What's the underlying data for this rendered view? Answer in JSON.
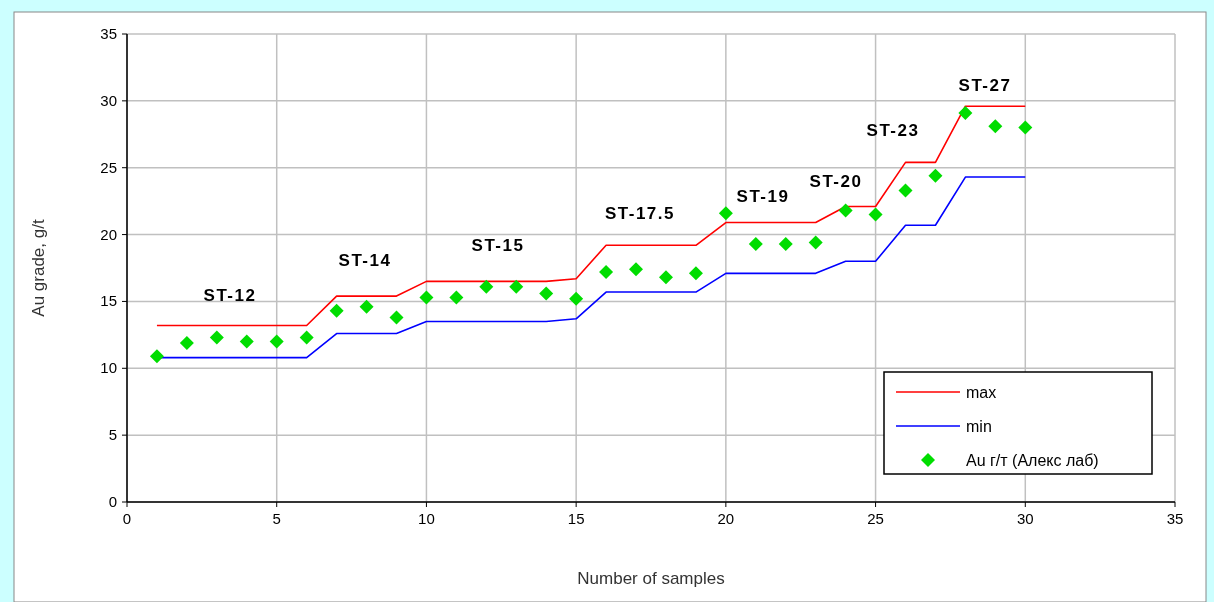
{
  "chart_data": {
    "type": "line",
    "xlabel": "Number of samples",
    "ylabel": "Au grade, g/t",
    "x": [
      1,
      2,
      3,
      4,
      5,
      6,
      7,
      8,
      9,
      10,
      11,
      12,
      13,
      14,
      15,
      16,
      17,
      18,
      19,
      20,
      21,
      22,
      23,
      24,
      25,
      26,
      27,
      28,
      29,
      30
    ],
    "series": [
      {
        "name": "max",
        "color": "#ff0000",
        "marker": "none",
        "values": [
          13.2,
          13.2,
          13.2,
          13.2,
          13.2,
          13.2,
          15.4,
          15.4,
          15.4,
          16.5,
          16.5,
          16.5,
          16.5,
          16.5,
          16.7,
          19.2,
          19.2,
          19.2,
          19.2,
          20.9,
          20.9,
          20.9,
          20.9,
          22.1,
          22.1,
          25.4,
          25.4,
          29.6,
          29.6,
          29.6
        ]
      },
      {
        "name": "min",
        "color": "#0000ff",
        "marker": "none",
        "values": [
          10.8,
          10.8,
          10.8,
          10.8,
          10.8,
          10.8,
          12.6,
          12.6,
          12.6,
          13.5,
          13.5,
          13.5,
          13.5,
          13.5,
          13.7,
          15.7,
          15.7,
          15.7,
          15.7,
          17.1,
          17.1,
          17.1,
          17.1,
          18.0,
          18.0,
          20.7,
          20.7,
          24.3,
          24.3,
          24.3
        ]
      },
      {
        "name": "Au г/т (Алекс лаб)",
        "color": "#00dd00",
        "type": "scatter",
        "marker": "diamond",
        "values": [
          10.9,
          11.9,
          12.3,
          12.0,
          12.0,
          12.3,
          14.3,
          14.6,
          13.8,
          15.3,
          15.3,
          16.1,
          16.1,
          15.6,
          15.2,
          17.2,
          17.4,
          16.8,
          17.1,
          21.6,
          19.3,
          19.3,
          19.4,
          21.8,
          21.5,
          23.3,
          24.4,
          29.1,
          28.1,
          28.0
        ]
      }
    ],
    "xlim": [
      0,
      35
    ],
    "xticks": [
      0,
      5,
      10,
      15,
      20,
      25,
      30,
      35
    ],
    "ylim": [
      0,
      35
    ],
    "yticks": [
      0,
      5,
      10,
      15,
      20,
      25,
      30,
      35
    ],
    "grid": true,
    "legend": "bottom right",
    "annotations": [
      "ST-12",
      "ST-14",
      "ST-15",
      "ST-17.5",
      "ST-19",
      "ST-20",
      "ST-23",
      "ST-27"
    ]
  }
}
